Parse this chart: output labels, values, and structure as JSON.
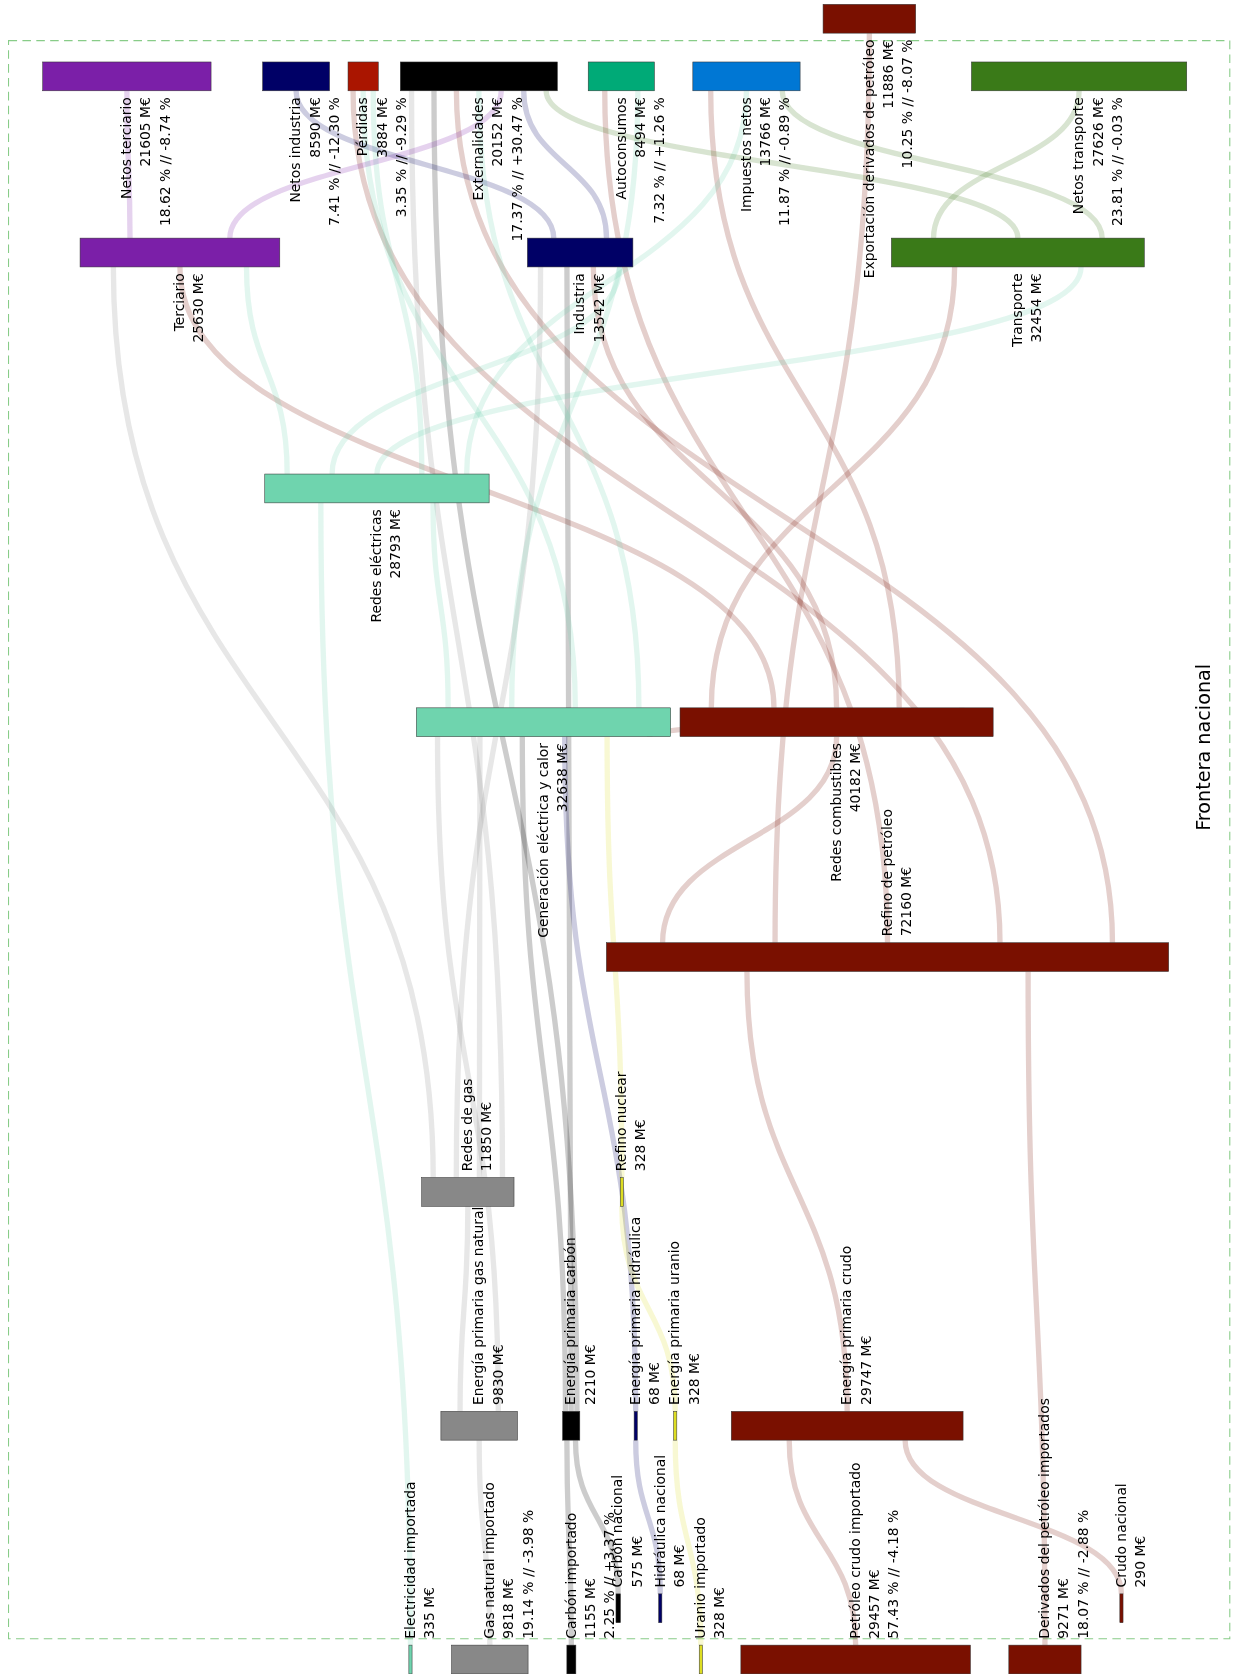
{
  "chart_data": {
    "type": "other",
    "categories": [
      "Netos terciario",
      "Netos industria",
      "Pérdidas",
      "Externalidades",
      "Autoconsumos",
      "Impuestos netos",
      "Exportación derivados de petróleo",
      "Netos transporte",
      "Terciario",
      "Industria",
      "Transporte",
      "Redes eléctricas",
      "Generación eléctrica y calor",
      "Redes combustibles",
      "Refino de petróleo",
      "Redes de gas",
      "Refino nuclear",
      "Energía primaria gas natural",
      "Energía primaria carbón",
      "Energía primaria hidráulica",
      "Energía primaria uranio",
      "Energía primaria crudo",
      "Carbón nacional",
      "Hidráulica nacional",
      "Crudo nacional",
      "Electricidad importada",
      "Gas natural importado",
      "Carbón importado",
      "Uranio importado",
      "Petróleo crudo importado",
      "Derivados del petróleo importados"
    ],
    "values": [
      21605,
      8590,
      3884,
      20152,
      8494,
      13766,
      11886,
      27626,
      25630,
      13542,
      32454,
      28793,
      32638,
      40182,
      72160,
      11850,
      328,
      9830,
      2210,
      68,
      328,
      29747,
      575,
      68,
      290,
      335,
      9818,
      1155,
      328,
      29457,
      9271
    ],
    "value_labels": [
      "21605 M€",
      "8590 M€",
      "3884 M€",
      "20152 M€",
      "8494 M€",
      "13766 M€",
      "11886 M€",
      "27626 M€",
      "25630 M€",
      "13542 M€",
      "32454 M€",
      "28793 M€",
      "32638 M€",
      "40182 M€",
      "72160 M€",
      "11850 M€",
      "328 M€",
      "9830 M€",
      "2210 M€",
      "68 M€",
      "328 M€",
      "29747 M€",
      "575 M€",
      "68 M€",
      "290 M€",
      "335 M€",
      "9818 M€",
      "1155 M€",
      "328 M€",
      "29457 M€",
      "9271 M€"
    ],
    "colors": [
      "#7b1fa8",
      "#000066",
      "#aa1500",
      "#000000",
      "#00aa77",
      "#0077d4",
      "#7a1000",
      "#3a7a18",
      "#7b1fa8",
      "#000066",
      "#3a7a18",
      "#6fd4ae",
      "#6fd4ae",
      "#7a1000",
      "#7a1000",
      "#888888",
      "#dddd22",
      "#888888",
      "#000000",
      "#000066",
      "#dddd22",
      "#7a1000",
      "#000000",
      "#000066",
      "#7a1000",
      "#6fd4ae",
      "#888888",
      "#000000",
      "#dddd22",
      "#7a1000",
      "#7a1000"
    ],
    "annotations": [
      "Frontera nacional",
      {
        "text": "18.62 % // -8.74 %",
        "x": "Netos terciario"
      },
      {
        "text": "7.41 % // -12.30 %",
        "x": "Netos industria"
      },
      {
        "text": "3.35 % // -9.29 %",
        "x": "Pérdidas"
      },
      {
        "text": "17.37 % // +30.47 %",
        "x": "Externalidades"
      },
      {
        "text": "7.32 % // +1.26 %",
        "x": "Autoconsumos"
      },
      {
        "text": "11.87 % // -0.89 %",
        "x": "Impuestos netos"
      },
      {
        "text": "10.25 % // -8.07 %",
        "x": "Exportación derivados de petróleo"
      },
      {
        "text": "23.81 % // -0.03 %",
        "x": "Netos transporte"
      },
      {
        "text": "19.14 % // -3.98 %",
        "x": "Gas natural importado"
      },
      {
        "text": "2.25 % // +3.37 %",
        "x": "Carbón importado"
      },
      {
        "text": "57.43 % // -4.18 %",
        "x": "Petróleo crudo importado"
      },
      {
        "text": "18.07 % // -2.88 %",
        "x": "Derivados del petróleo importados"
      }
    ]
  }
}
